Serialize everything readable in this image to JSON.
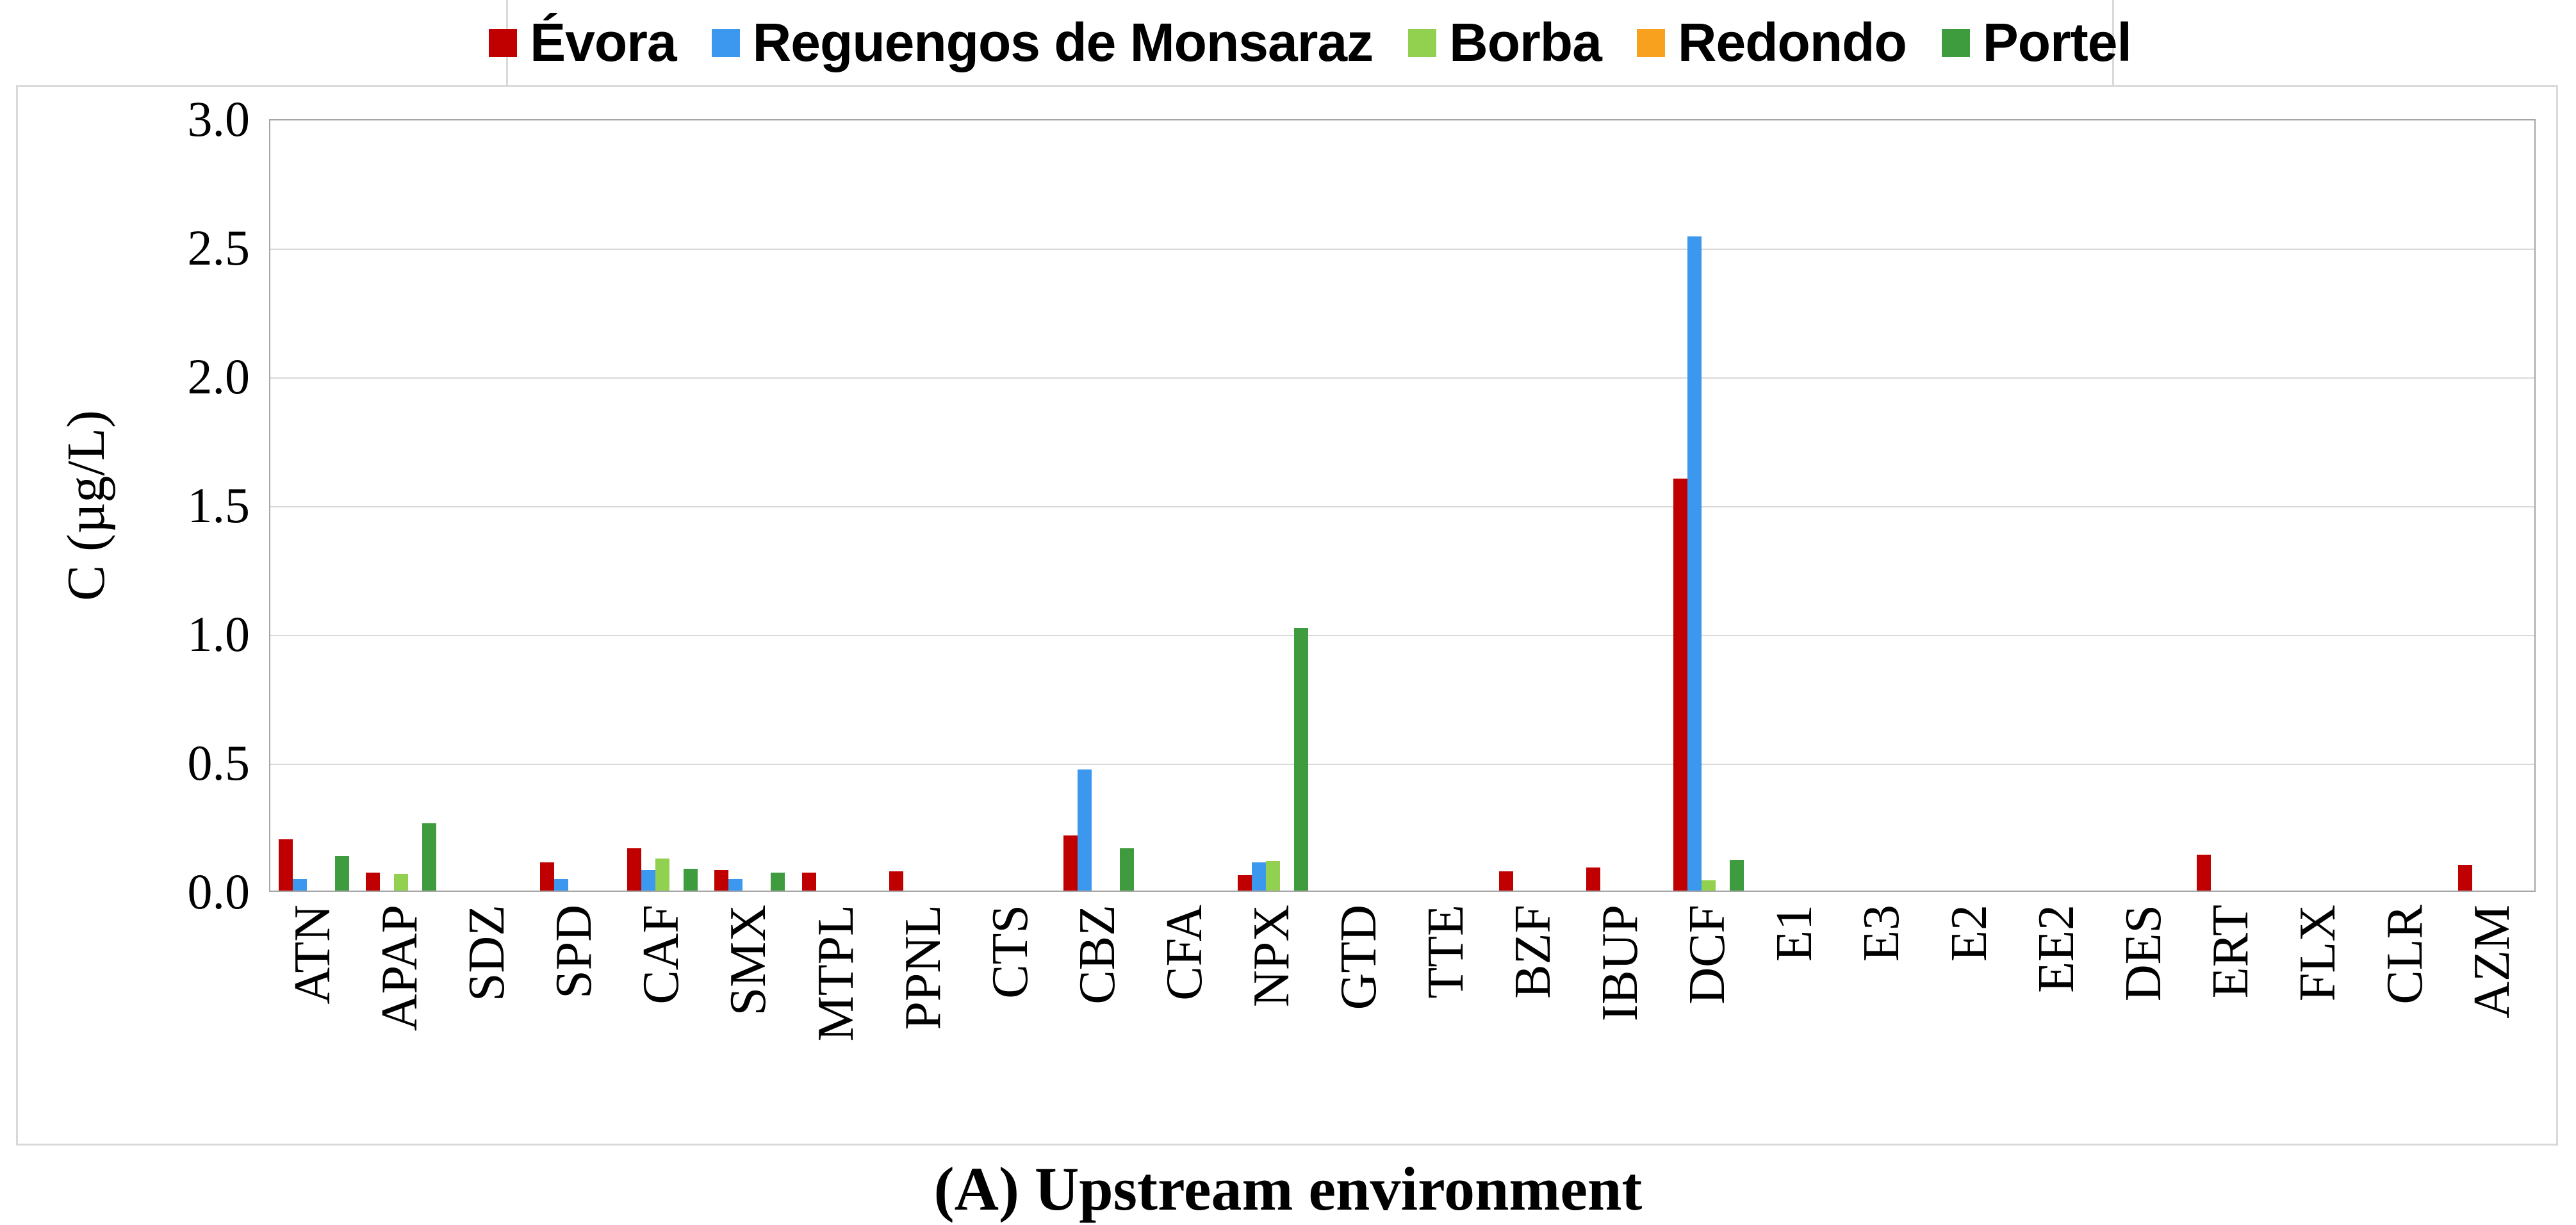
{
  "caption": "(A) Upstream environment",
  "chart_data": {
    "type": "bar",
    "title": "",
    "xlabel": "",
    "ylabel": "C (µg/L)",
    "ylim": [
      0.0,
      3.0
    ],
    "ytick_step": 0.5,
    "yticks": [
      "3.0",
      "2.5",
      "2.0",
      "1.5",
      "1.0",
      "0.5",
      "0.0"
    ],
    "grid": "horizontal",
    "gridline_color": "#D9D9D9",
    "axis_color": "#A6A6A6",
    "legend_position": "top",
    "caption": "(A) Upstream environment",
    "categories": [
      "ATN",
      "APAP",
      "SDZ",
      "SPD",
      "CAF",
      "SMX",
      "MTPL",
      "PPNL",
      "CTS",
      "CBZ",
      "CFA",
      "NPX",
      "GTD",
      "TTE",
      "BZF",
      "IBUP",
      "DCF",
      "E1",
      "E3",
      "E2",
      "EE2",
      "DES",
      "ERT",
      "FLX",
      "CLR",
      "AZM"
    ],
    "series": [
      {
        "name": "Évora",
        "color": "#C00000",
        "values": [
          0.2,
          0.07,
          0,
          0.11,
          0.165,
          0.08,
          0.07,
          0.075,
          0,
          0.215,
          0,
          0.06,
          0,
          0,
          0.075,
          0.09,
          1.6,
          0,
          0,
          0,
          0,
          0,
          0.14,
          0,
          0,
          0.1
        ]
      },
      {
        "name": "Reguengos de Monsaraz",
        "color": "#3B98EE",
        "values": [
          0.045,
          0,
          0,
          0.045,
          0.08,
          0.045,
          0,
          0,
          0,
          0.47,
          0,
          0.11,
          0,
          0,
          0,
          0,
          2.54,
          0,
          0,
          0,
          0,
          0,
          0,
          0,
          0,
          0
        ]
      },
      {
        "name": "Borba",
        "color": "#92D050",
        "values": [
          0,
          0.065,
          0,
          0,
          0.125,
          0,
          0,
          0,
          0,
          0,
          0,
          0.115,
          0,
          0,
          0,
          0,
          0.04,
          0,
          0,
          0,
          0,
          0,
          0,
          0,
          0,
          0
        ]
      },
      {
        "name": "Redondo",
        "color": "#F7A11F",
        "values": [
          0,
          0,
          0,
          0,
          0,
          0,
          0,
          0,
          0,
          0,
          0,
          0,
          0,
          0,
          0,
          0,
          0,
          0,
          0,
          0,
          0,
          0,
          0,
          0,
          0,
          0
        ]
      },
      {
        "name": "Portel",
        "color": "#3E9B3E",
        "values": [
          0.135,
          0.26,
          0,
          0,
          0.085,
          0.07,
          0,
          0,
          0,
          0.165,
          0,
          1.02,
          0,
          0,
          0,
          0,
          0.12,
          0,
          0,
          0,
          0,
          0,
          0,
          0,
          0,
          0
        ]
      }
    ]
  }
}
